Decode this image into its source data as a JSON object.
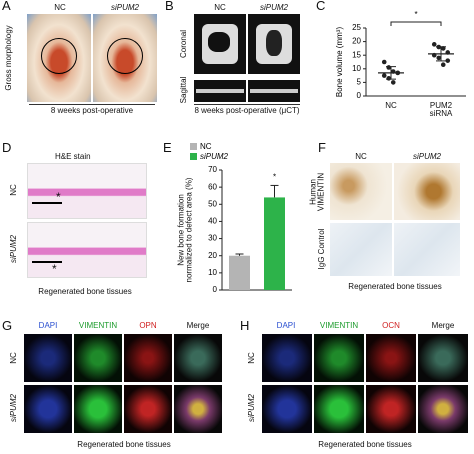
{
  "panels": {
    "A": {
      "letter": "A",
      "side_label": "Gross morphology",
      "columns": [
        "NC",
        "siPUM2"
      ],
      "caption": "8 weeks post-operative"
    },
    "B": {
      "letter": "B",
      "columns": [
        "NC",
        "siPUM2"
      ],
      "rows": [
        "Coronal",
        "Sagittal"
      ],
      "caption": "8 weeks post-operative (μCT)"
    },
    "C": {
      "letter": "C"
    },
    "D": {
      "letter": "D",
      "stain": "H&E stain",
      "rows": [
        "NC",
        "siPUM2"
      ],
      "annotations": [
        "*",
        "*"
      ],
      "caption": "Regenerated bone tissues"
    },
    "E": {
      "letter": "E"
    },
    "F": {
      "letter": "F",
      "columns": [
        "NC",
        "siPUM2"
      ],
      "rows": [
        "Human\nVIMENTIN",
        "IgG Control"
      ],
      "caption": "Regenerated bone tissues"
    },
    "G": {
      "letter": "G",
      "columns": [
        "DAPI",
        "VIMENTIN",
        "OPN",
        "Merge"
      ],
      "rows": [
        "NC",
        "siPUM2"
      ],
      "caption": "Regenerated bone tissues"
    },
    "H": {
      "letter": "H",
      "columns": [
        "DAPI",
        "VIMENTIN",
        "OCN",
        "Merge"
      ],
      "rows": [
        "NC",
        "siPUM2"
      ],
      "caption": "Regenerated bone tissues"
    }
  },
  "chart_data": [
    {
      "type": "scatter",
      "ylabel": "Bone volume (mm³)",
      "categories": [
        "NC",
        "PUM2\nsiRNA"
      ],
      "values": [
        [
          12.5,
          10.5,
          9,
          8.5,
          7.5,
          6.5,
          5,
          8.5
        ],
        [
          19,
          18,
          17.5,
          16,
          15,
          14,
          11.5,
          13
        ]
      ],
      "means": [
        8.5,
        15.5
      ],
      "sd": [
        2.3,
        2.6
      ],
      "color": "#222222",
      "ylim": [
        0,
        25
      ],
      "yticks": [
        0,
        5,
        10,
        15,
        20,
        25
      ],
      "annotation": "*"
    },
    {
      "type": "bar",
      "ylabel": "New bone formation\nnormalized to defect area (%)",
      "series": [
        {
          "name": "NC",
          "color": "#b4b4b4",
          "values": [
            20
          ],
          "errors": [
            1
          ]
        },
        {
          "name": "siPUM2",
          "color": "#2db34a",
          "values": [
            54
          ],
          "errors": [
            7
          ]
        }
      ],
      "ylim": [
        0,
        70
      ],
      "yticks": [
        0,
        10,
        20,
        30,
        40,
        50,
        60,
        70
      ],
      "legend": "upper left",
      "annotation": "*"
    }
  ]
}
